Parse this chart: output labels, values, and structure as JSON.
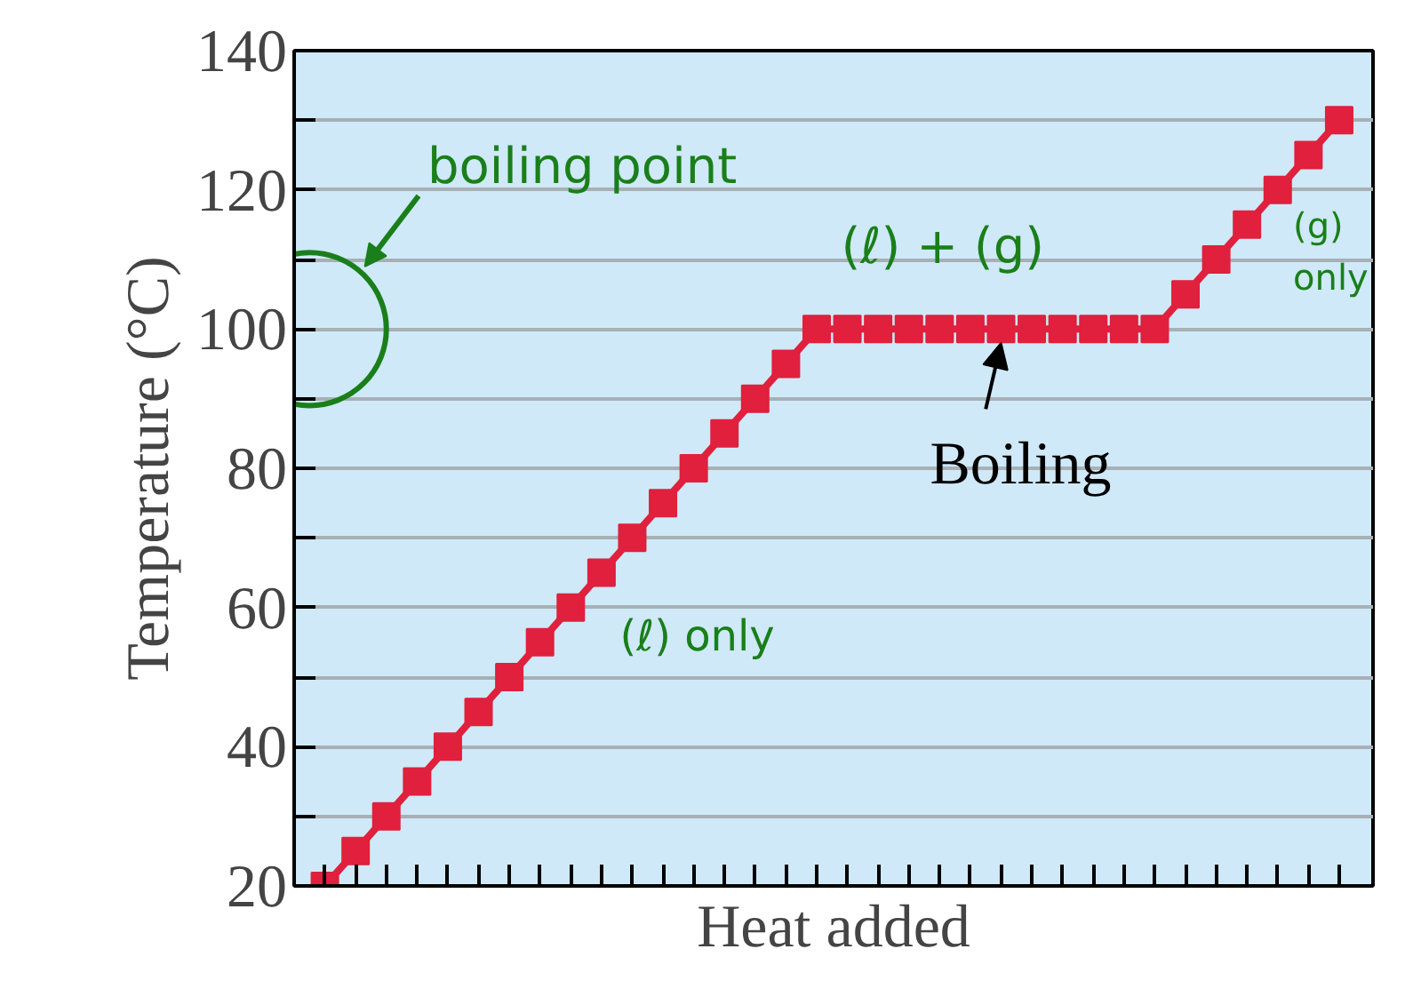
{
  "chart_data": {
    "type": "line",
    "xlabel": "Heat added",
    "ylabel": "Temperature (°C)",
    "categories": [
      null,
      null,
      null,
      null,
      null,
      null,
      null,
      null,
      null,
      null,
      null,
      null,
      null,
      null,
      null,
      null,
      null,
      null,
      null,
      null,
      null,
      null,
      null,
      null,
      null,
      null,
      null,
      null,
      null,
      null,
      null,
      null,
      null,
      null
    ],
    "series": [
      {
        "color": "#e0203c",
        "values": [
          20,
          25,
          30,
          35,
          40,
          45,
          50,
          55,
          60,
          65,
          70,
          75,
          80,
          85,
          90,
          95,
          100,
          100,
          100,
          100,
          100,
          100,
          100,
          100,
          100,
          100,
          100,
          100,
          105,
          110,
          115,
          120,
          125,
          130
        ]
      }
    ],
    "marker": "square",
    "line_style": "solid",
    "grid": "y",
    "tick_labels": "y",
    "ylim": [
      20,
      140
    ],
    "yticks": [
      20,
      {
        "value": 30,
        "label": null
      },
      40,
      {
        "value": 50,
        "label": null
      },
      60,
      {
        "value": 70,
        "label": null
      },
      80,
      {
        "value": 90,
        "label": null
      },
      100,
      {
        "value": 110,
        "label": null
      },
      120,
      {
        "value": 130,
        "label": null
      },
      140
    ],
    "annotations": [
      {
        "text": "Boiling",
        "y": 100
      },
      "boiling point",
      "(ℓ) only",
      {
        "text": "(ℓ) + (g)",
        "y": 100
      },
      "(g) only"
    ]
  }
}
